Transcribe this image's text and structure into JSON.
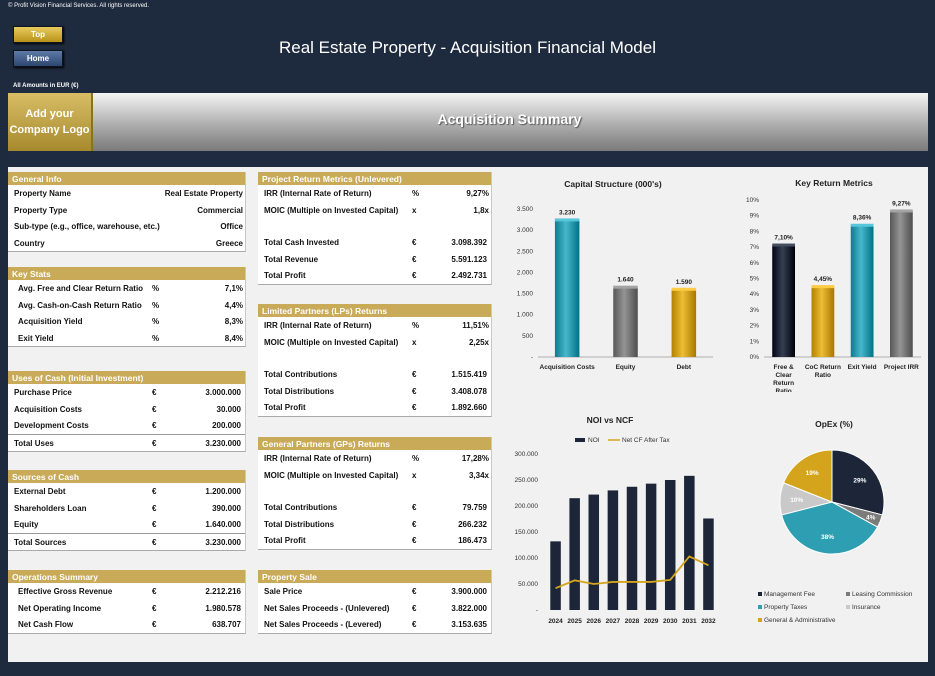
{
  "copyright": "© Profit Vision Financial Services. All rights reserved.",
  "nav": {
    "top": "Top",
    "home": "Home"
  },
  "title": "Real Estate Property - Acquisition Financial Model",
  "amounts_note": "All Amounts in  EUR (€)",
  "logo_text": "Add your Company Logo",
  "banner_title": "Acquisition Summary",
  "general_info": {
    "title": "General Info",
    "rows": [
      {
        "label": "Property Name",
        "value": "Real Estate Property"
      },
      {
        "label": "Property Type",
        "value": "Commercial"
      },
      {
        "label": "Sub-type (e.g., office, warehouse, etc.)",
        "value": "Office"
      },
      {
        "label": "Country",
        "value": "Greece"
      }
    ]
  },
  "key_stats": {
    "title": "Key Stats",
    "rows": [
      {
        "label": "Avg. Free and Clear Return Ratio",
        "unit": "%",
        "value": "7,1%"
      },
      {
        "label": "Avg. Cash-on-Cash Return Ratio",
        "unit": "%",
        "value": "4,4%"
      },
      {
        "label": "Acquisition Yield",
        "unit": "%",
        "value": "8,3%"
      },
      {
        "label": "Exit Yield",
        "unit": "%",
        "value": "8,4%"
      }
    ]
  },
  "uses_of_cash": {
    "title": "Uses of Cash (Initial Investment)",
    "rows": [
      {
        "label": "Purchase Price",
        "unit": "€",
        "value": "3.000.000"
      },
      {
        "label": "Acquisition Costs",
        "unit": "€",
        "value": "30.000"
      },
      {
        "label": "Development Costs",
        "unit": "€",
        "value": "200.000"
      }
    ],
    "total": {
      "label": "Total Uses",
      "unit": "€",
      "value": "3.230.000"
    }
  },
  "sources_of_cash": {
    "title": "Sources of Cash",
    "rows": [
      {
        "label": "External Debt",
        "unit": "€",
        "value": "1.200.000"
      },
      {
        "label": "Shareholders Loan",
        "unit": "€",
        "value": "390.000"
      },
      {
        "label": "Equity",
        "unit": "€",
        "value": "1.640.000"
      }
    ],
    "total": {
      "label": "Total Sources",
      "unit": "€",
      "value": "3.230.000"
    }
  },
  "operations_summary": {
    "title": "Operations Summary",
    "rows": [
      {
        "label": "Effective Gross Revenue",
        "unit": "€",
        "value": "2.212.216"
      },
      {
        "label": "Net Operating Income",
        "unit": "€",
        "value": "1.980.578"
      },
      {
        "label": "Net Cash Flow",
        "unit": "€",
        "value": "638.707"
      }
    ]
  },
  "project_returns": {
    "title": "Project Return Metrics (Unlevered)",
    "rows": [
      {
        "label": "IRR (Internal Rate of Return)",
        "unit": "%",
        "value": "9,27%"
      },
      {
        "label": "MOIC (Multiple on Invested Capital)",
        "unit": "x",
        "value": "1,8x"
      }
    ],
    "rows2": [
      {
        "label": "Total Cash Invested",
        "unit": "€",
        "value": "3.098.392"
      },
      {
        "label": "Total Revenue",
        "unit": "€",
        "value": "5.591.123"
      },
      {
        "label": "Total Profit",
        "unit": "€",
        "value": "2.492.731"
      }
    ]
  },
  "lp_returns": {
    "title": "Limited Partners (LPs) Returns",
    "rows": [
      {
        "label": "IRR (Internal Rate of Return)",
        "unit": "%",
        "value": "11,51%"
      },
      {
        "label": "MOIC (Multiple on Invested Capital)",
        "unit": "x",
        "value": "2,25x"
      }
    ],
    "rows2": [
      {
        "label": "Total Contributions",
        "unit": "€",
        "value": "1.515.419"
      },
      {
        "label": "Total Distributions",
        "unit": "€",
        "value": "3.408.078"
      },
      {
        "label": "Total Profit",
        "unit": "€",
        "value": "1.892.660"
      }
    ]
  },
  "gp_returns": {
    "title": "General Partners (GPs) Returns",
    "rows": [
      {
        "label": "IRR (Internal Rate of Return)",
        "unit": "%",
        "value": "17,28%"
      },
      {
        "label": "MOIC (Multiple on Invested Capital)",
        "unit": "x",
        "value": "3,34x"
      }
    ],
    "rows2": [
      {
        "label": "Total Contributions",
        "unit": "€",
        "value": "79.759"
      },
      {
        "label": "Total Distributions",
        "unit": "€",
        "value": "266.232"
      },
      {
        "label": "Total Profit",
        "unit": "€",
        "value": "186.473"
      }
    ]
  },
  "property_sale": {
    "title": "Property Sale",
    "rows": [
      {
        "label": "Sale Price",
        "unit": "€",
        "value": "3.900.000"
      },
      {
        "label": "Net Sales Proceeds - (Unlevered)",
        "unit": "€",
        "value": "3.822.000"
      },
      {
        "label": "Net Sales Proceeds - (Levered)",
        "unit": "€",
        "value": "3.153.635"
      }
    ]
  },
  "colors": {
    "gold": "#c8aa58",
    "navy": "#1f2b40",
    "teal": "#2e9fb2",
    "grey": "#7b7b7b",
    "yellow": "#d4a41c",
    "dark": "#1c2638"
  },
  "chart_data": [
    {
      "type": "bar",
      "title": "Capital Structure (000's)",
      "categories": [
        "Acquisition Costs",
        "Equity",
        "Debt"
      ],
      "values": [
        3230,
        1640,
        1590
      ],
      "value_labels": [
        "3.230",
        "1.640",
        "1.590"
      ],
      "colors": [
        "#2e9fb2",
        "#7b7b7b",
        "#d4a41c"
      ],
      "ylim": [
        0,
        3500
      ],
      "yticks": [
        "-",
        "500",
        "1.000",
        "1.500",
        "2.000",
        "2.500",
        "3.000",
        "3.500"
      ]
    },
    {
      "type": "bar",
      "title": "Key Return Metrics",
      "categories": [
        "Free & Clear Return Ratio",
        "CoC Return Ratio",
        "Exit Yield",
        "Project IRR"
      ],
      "values": [
        7.1,
        4.45,
        8.36,
        9.27
      ],
      "value_labels": [
        "7,10%",
        "4,45%",
        "8,36%",
        "9,27%"
      ],
      "colors": [
        "#1c2638",
        "#d4a41c",
        "#2e9fb2",
        "#7b7b7b"
      ],
      "ylim": [
        0,
        10
      ],
      "yticks": [
        "0%",
        "1%",
        "2%",
        "3%",
        "4%",
        "5%",
        "6%",
        "7%",
        "8%",
        "9%",
        "10%"
      ]
    },
    {
      "type": "bar",
      "title": "NOI vs NCF",
      "categories": [
        "2024",
        "2025",
        "2026",
        "2027",
        "2028",
        "2029",
        "2030",
        "2031",
        "2032"
      ],
      "series": [
        {
          "name": "NOI",
          "type": "bar",
          "color": "#1c2638",
          "values": [
            132000,
            215000,
            222000,
            230000,
            237000,
            243000,
            250000,
            258000,
            176000
          ]
        },
        {
          "name": "Net CF After Tax",
          "type": "line",
          "color": "#d4a41c",
          "values": [
            42000,
            57000,
            50000,
            54000,
            54000,
            54000,
            58000,
            103000,
            86000
          ]
        }
      ],
      "ylim": [
        0,
        300000
      ],
      "yticks": [
        "-",
        "50.000",
        "100.000",
        "150.000",
        "200.000",
        "250.000",
        "300.000"
      ]
    },
    {
      "type": "pie",
      "title": "OpEx (%)",
      "slices": [
        {
          "name": "Management Fee",
          "value": 29,
          "label": "29%",
          "color": "#1c2638"
        },
        {
          "name": "Leasing Commission",
          "value": 4,
          "label": "4%",
          "color": "#7b7b7b"
        },
        {
          "name": "Property Taxes",
          "value": 38,
          "label": "38%",
          "color": "#2e9fb2"
        },
        {
          "name": "Insurance",
          "value": 10,
          "label": "10%",
          "color": "#c9c9c9"
        },
        {
          "name": "General & Administrative",
          "value": 19,
          "label": "19%",
          "color": "#d4a41c"
        }
      ]
    }
  ]
}
